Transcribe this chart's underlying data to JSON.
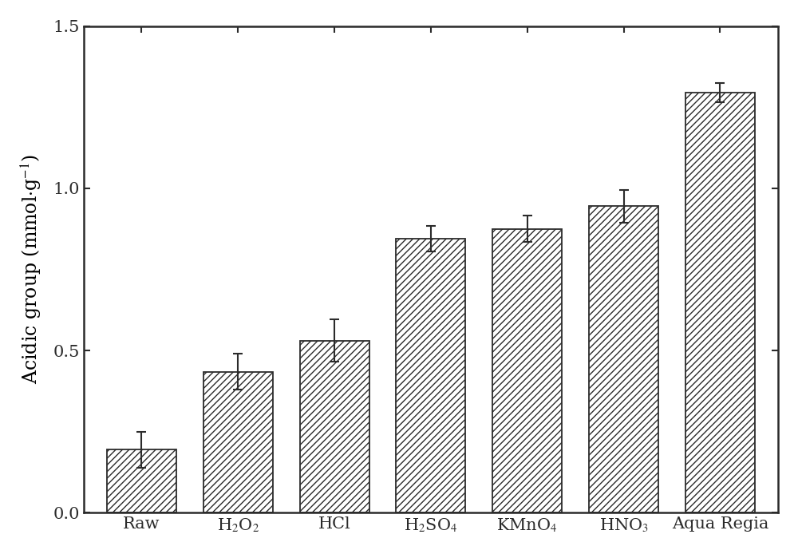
{
  "categories": [
    "Raw",
    "H$_2$O$_2$",
    "HCl",
    "H$_2$SO$_4$",
    "KMnO$_4$",
    "HNO$_3$",
    "Aqua Regia"
  ],
  "values": [
    0.195,
    0.435,
    0.53,
    0.845,
    0.875,
    0.945,
    1.295
  ],
  "errors": [
    0.055,
    0.055,
    0.065,
    0.04,
    0.04,
    0.05,
    0.03
  ],
  "ylabel": "Acidic group (mmol$\\cdot$g$^{-1}$)",
  "ylim": [
    0,
    1.5
  ],
  "yticks": [
    0.0,
    0.5,
    1.0,
    1.5
  ],
  "bar_facecolor": "#ffffff",
  "bar_edgecolor": "#2b2b2b",
  "hatch": "////",
  "background_color": "#ffffff",
  "ylabel_fontsize": 17,
  "tick_fontsize": 15,
  "xtick_fontsize": 15,
  "bar_width": 0.72,
  "capsize": 4,
  "error_linewidth": 1.5,
  "error_color": "#2b2b2b",
  "spine_linewidth": 1.8,
  "figsize": [
    10.0,
    6.94
  ],
  "dpi": 100
}
